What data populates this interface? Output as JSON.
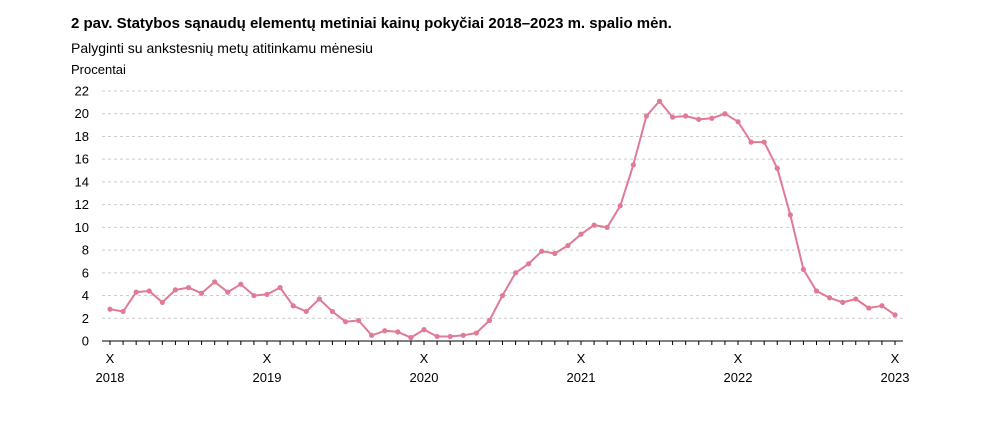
{
  "chart_data": {
    "type": "line",
    "title": "2 pav. Statybos sąnaudų elementų metiniai kainų pokyčiai 2018–2023 m. spalio mėn.",
    "subtitle": "Palyginti su ankstesnių metų atitinkamu mėnesiu",
    "ylabel": "Procentai",
    "ylim": [
      0,
      22
    ],
    "yticks": [
      0,
      2,
      4,
      6,
      8,
      10,
      12,
      14,
      16,
      18,
      20,
      22
    ],
    "grid": true,
    "x_major_labels": [
      {
        "index": 0,
        "month": "X",
        "year": "2018"
      },
      {
        "index": 12,
        "month": "X",
        "year": "2019"
      },
      {
        "index": 24,
        "month": "X",
        "year": "2020"
      },
      {
        "index": 36,
        "month": "X",
        "year": "2021"
      },
      {
        "index": 48,
        "month": "X",
        "year": "2022"
      },
      {
        "index": 60,
        "month": "X",
        "year": "2023"
      }
    ],
    "line_color": "#e07a96",
    "series": [
      {
        "values": [
          2.8,
          2.6,
          4.3,
          4.4,
          3.4,
          4.5,
          4.7,
          4.2,
          5.2,
          4.3,
          5.0,
          4.0,
          4.1,
          4.7,
          3.1,
          2.6,
          3.7,
          2.6,
          1.7,
          1.8,
          0.5,
          0.9,
          0.8,
          0.3,
          1.0,
          0.4,
          0.4,
          0.5,
          0.7,
          1.8,
          4.0,
          6.0,
          6.8,
          7.9,
          7.7,
          8.4,
          9.4,
          10.2,
          10.0,
          11.9,
          15.5,
          19.8,
          21.1,
          19.7,
          19.8,
          19.5,
          19.6,
          20.0,
          19.3,
          17.5,
          17.5,
          15.2,
          11.1,
          6.3,
          4.4,
          3.8,
          3.4,
          3.7,
          2.9,
          3.1,
          2.3
        ]
      }
    ]
  }
}
